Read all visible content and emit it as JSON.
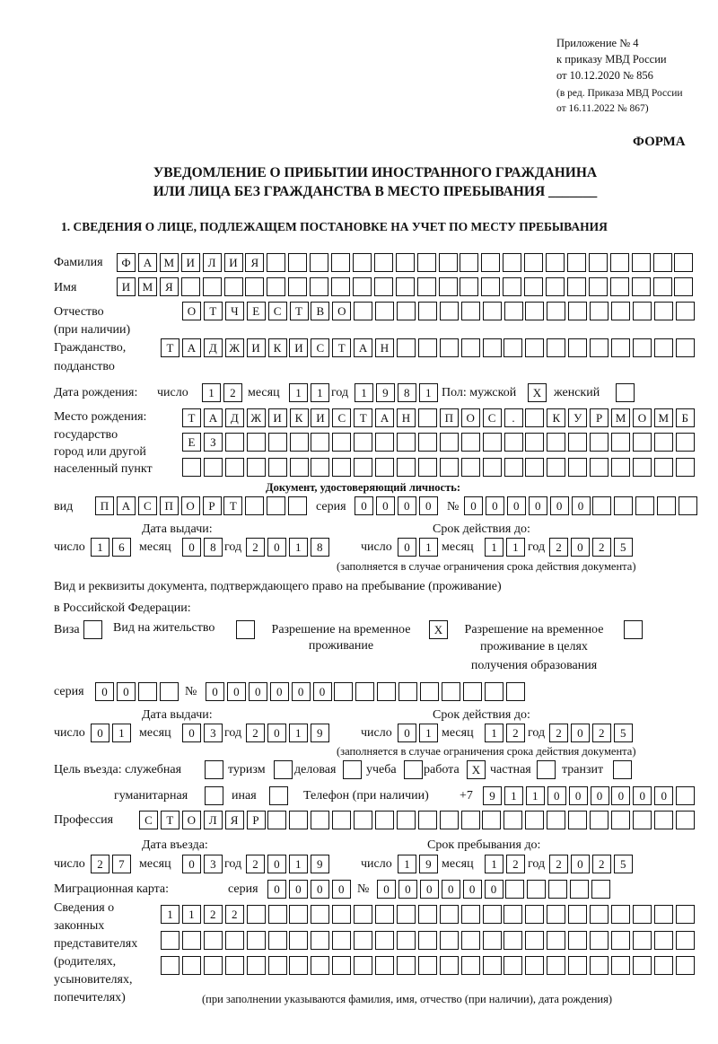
{
  "header": {
    "appendix": "Приложение № 4",
    "order": "к приказу МВД России",
    "order_date": "от 10.12.2020 № 856",
    "amend1": "(в ред. Приказа МВД России",
    "amend2": "от 16.11.2022 № 867)",
    "form": "ФОРМА",
    "title1": "УВЕДОМЛЕНИЕ О ПРИБЫТИИ ИНОСТРАННОГО ГРАЖДАНИНА",
    "title2": "ИЛИ ЛИЦА БЕЗ ГРАЖДАНСТВА В МЕСТО ПРЕБЫВАНИЯ _______"
  },
  "section1": {
    "heading": "1. СВЕДЕНИЯ О ЛИЦЕ, ПОДЛЕЖАЩЕМ ПОСТАНОВКЕ НА УЧЕТ ПО МЕСТУ ПРЕБЫВАНИЯ",
    "labels": {
      "surname": "Фамилия",
      "name": "Имя",
      "patronymic": "Отчество",
      "patronymic2": "(при наличии)",
      "citizenship": "Гражданство,",
      "citizenship2": "подданство",
      "birth_date": "Дата рождения:",
      "day": "число",
      "month": "месяц",
      "year": "год",
      "sex": "Пол: мужской",
      "female": "женский",
      "birthplace1": "Место рождения:",
      "birthplace2": "государство",
      "birthplace3": "город или другой",
      "birthplace4": "населенный пункт",
      "id_doc": "Документ, удостоверяющий личность:",
      "kind": "вид",
      "series": "серия",
      "number": "№",
      "issue_date": "Дата выдачи:",
      "valid_until": "Срок действия до:",
      "valid_note": "(заполняется в случае ограничения срока действия документа)",
      "right_doc1": "Вид и реквизиты документа, подтверждающего право на пребывание (проживание)",
      "right_doc2": "в Российской Федерации:",
      "visa": "Виза",
      "residence": "Вид на жительство",
      "temp_res1": "Разрешение на временное",
      "temp_res2": "проживание",
      "temp_edu1": "Разрешение на временное",
      "temp_edu2": "проживание в целях",
      "temp_edu3": "получения образования",
      "purpose": "Цель въезда: служебная",
      "tourism": "туризм",
      "business": "деловая",
      "study": "учеба",
      "work": "работа",
      "private": "частная",
      "transit": "транзит",
      "humanitarian": "гуманитарная",
      "other": "иная",
      "phone": "Телефон (при наличии)",
      "phone_prefix": "+7",
      "profession": "Профессия",
      "entry_date": "Дата въезда:",
      "stay_until": "Срок пребывания до:",
      "migration_card": "Миграционная карта:",
      "reps1": "Сведения о",
      "reps2": "законных",
      "reps3": "представителях",
      "reps4": "(родителях,",
      "reps5": "усыновителях,",
      "reps6": "попечителях)",
      "reps_note": "(при заполнении указываются фамилия, имя, отчество (при наличии), дата рождения)"
    },
    "values": {
      "surname": "ФАМИЛИЯ",
      "name": "ИМЯ",
      "patronymic": "ОТЧЕСТВО",
      "citizenship": "ТАДЖИКИСТАН",
      "birth_day": "12",
      "birth_month": "11",
      "birth_year": "1981",
      "male": "X",
      "female": "",
      "birthplace1": "ТАДЖИКИСТАН ПОС. КУРМОМБ",
      "birthplace2": "ЕЗ",
      "birthplace3": "",
      "id_kind": "ПАСПОРТ",
      "id_series": "0000",
      "id_number": "000000",
      "id_issue_day": "16",
      "id_issue_month": "08",
      "id_issue_year": "2018",
      "id_valid_day": "01",
      "id_valid_month": "11",
      "id_valid_year": "2025",
      "visa": "",
      "residence": "",
      "temp_res": "X",
      "temp_edu": "",
      "rd_series": "00",
      "rd_number": "000000",
      "rd_issue_day": "01",
      "rd_issue_month": "03",
      "rd_issue_year": "2019",
      "rd_valid_day": "01",
      "rd_valid_month": "12",
      "rd_valid_year": "2025",
      "p_official": "",
      "p_tourism": "",
      "p_business": "",
      "p_study": "",
      "p_work": "X",
      "p_private": "",
      "p_transit": "",
      "p_humanitarian": "",
      "p_other": "",
      "phone": "911000000",
      "profession": "СТОЛЯР",
      "entry_day": "27",
      "entry_month": "03",
      "entry_year": "2019",
      "stay_day": "19",
      "stay_month": "12",
      "stay_year": "2025",
      "mc_series": "0000",
      "mc_number": "000000",
      "reps1": "1122",
      "reps2": "",
      "reps3": ""
    }
  }
}
